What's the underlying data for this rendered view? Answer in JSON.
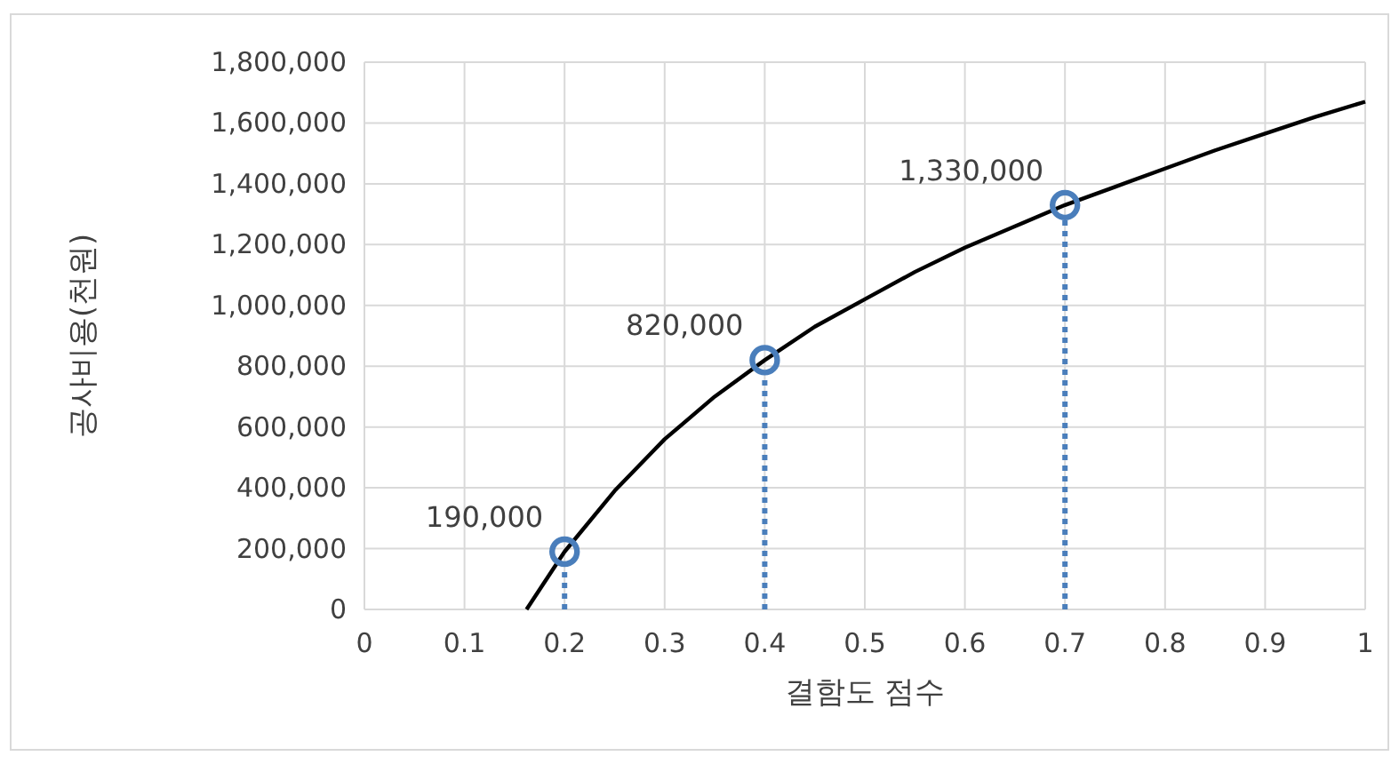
{
  "chart_data": {
    "type": "line",
    "xlabel": "결함도 점수",
    "ylabel": "공사비용(천원)",
    "xlim": [
      0,
      1
    ],
    "xticks": [
      0,
      0.1,
      0.2,
      0.3,
      0.4,
      0.5,
      0.6,
      0.7,
      0.8,
      0.9,
      1
    ],
    "ylim": [
      0,
      1800000
    ],
    "yticks": [
      {
        "value": 0,
        "label": "0"
      },
      {
        "value": 200000,
        "label": "200,000"
      },
      {
        "value": 400000,
        "label": "400,000"
      },
      {
        "value": 600000,
        "label": "600,000"
      },
      {
        "value": 800000,
        "label": "800,000"
      },
      {
        "value": 1000000,
        "label": "1,000,000"
      },
      {
        "value": 1200000,
        "label": "1,200,000"
      },
      {
        "value": 1400000,
        "label": "1,400,000"
      },
      {
        "value": 1600000,
        "label": "1,600,000"
      },
      {
        "value": 1800000,
        "label": "1,800,000"
      }
    ],
    "grid": true,
    "series": [
      {
        "color": "#000000",
        "marker": "none",
        "line_style": "solid",
        "x": [
          0.162,
          0.2,
          0.25,
          0.3,
          0.35,
          0.4,
          0.45,
          0.5,
          0.55,
          0.6,
          0.65,
          0.7,
          0.75,
          0.8,
          0.85,
          0.9,
          0.95,
          1.0
        ],
        "values": [
          0,
          190000,
          390000,
          560000,
          700000,
          820000,
          930000,
          1020000,
          1110000,
          1190000,
          1260000,
          1330000,
          1390000,
          1450000,
          1510000,
          1565000,
          1620000,
          1670000
        ]
      },
      {
        "type": "lollipop",
        "color": "#4a7ebb",
        "marker": "circle",
        "line_style": "dotted",
        "x": [
          0.2,
          0.4,
          0.7
        ],
        "values": [
          190000,
          820000,
          1330000
        ],
        "value_labels": [
          "190,000",
          "820,000",
          "1,330,000"
        ]
      }
    ]
  }
}
